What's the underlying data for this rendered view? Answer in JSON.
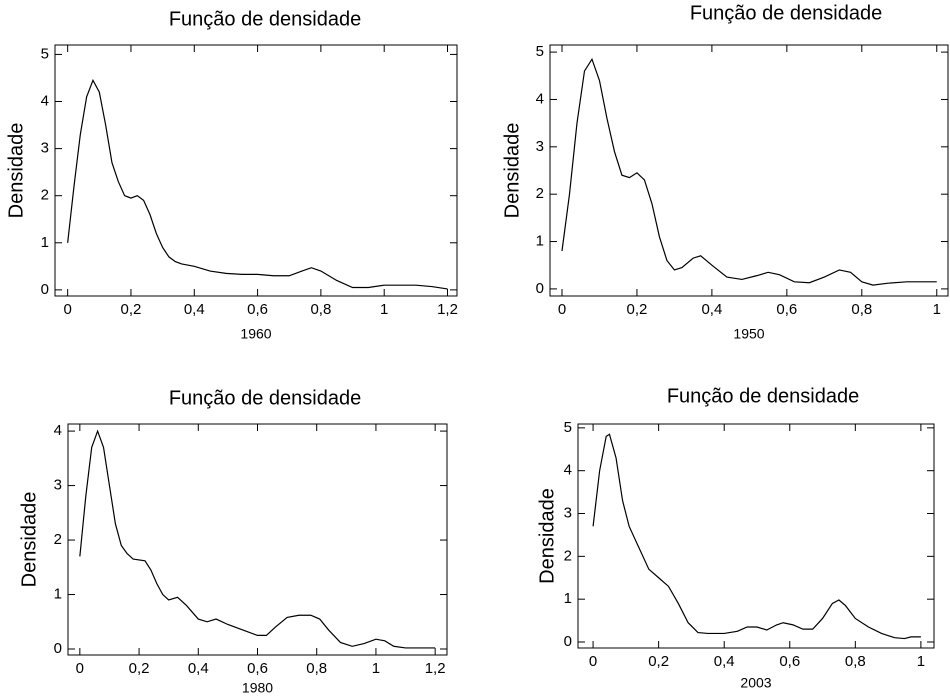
{
  "chart_data": [
    {
      "type": "line",
      "title": "Função de densidade",
      "xlabel": "1960",
      "ylabel": "Densidade",
      "color": "#000000",
      "x": [
        0,
        0.02,
        0.04,
        0.06,
        0.08,
        0.1,
        0.12,
        0.14,
        0.16,
        0.18,
        0.2,
        0.22,
        0.24,
        0.26,
        0.28,
        0.3,
        0.32,
        0.34,
        0.36,
        0.4,
        0.45,
        0.5,
        0.55,
        0.6,
        0.65,
        0.7,
        0.74,
        0.77,
        0.8,
        0.85,
        0.9,
        0.95,
        1.0,
        1.05,
        1.1,
        1.15,
        1.2
      ],
      "values": [
        1.0,
        2.2,
        3.3,
        4.1,
        4.45,
        4.2,
        3.5,
        2.7,
        2.3,
        2.0,
        1.95,
        2.0,
        1.9,
        1.6,
        1.2,
        0.9,
        0.7,
        0.6,
        0.55,
        0.5,
        0.4,
        0.35,
        0.33,
        0.33,
        0.3,
        0.3,
        0.4,
        0.47,
        0.4,
        0.2,
        0.05,
        0.05,
        0.1,
        0.1,
        0.1,
        0.07,
        0.02
      ],
      "xlim": [
        -0.04,
        1.23
      ],
      "ylim": [
        -0.13,
        5.2
      ],
      "xticks": [
        0,
        {
          "value": 0.2,
          "label": "0,2"
        },
        {
          "value": 0.4,
          "label": "0,4"
        },
        {
          "value": 0.6,
          "label": "0,6"
        },
        {
          "value": 0.8,
          "label": "0,8"
        },
        1,
        {
          "value": 1.2,
          "label": "1,2"
        }
      ],
      "yticks": [
        0,
        1,
        2,
        3,
        4,
        5
      ]
    },
    {
      "type": "line",
      "title": "Função de densidade",
      "xlabel": "1950",
      "ylabel": "Densidade",
      "color": "#000000",
      "x": [
        0,
        0.02,
        0.04,
        0.06,
        0.08,
        0.1,
        0.12,
        0.14,
        0.16,
        0.18,
        0.2,
        0.22,
        0.24,
        0.26,
        0.28,
        0.3,
        0.32,
        0.35,
        0.37,
        0.4,
        0.44,
        0.48,
        0.52,
        0.55,
        0.58,
        0.62,
        0.66,
        0.7,
        0.74,
        0.77,
        0.8,
        0.83,
        0.87,
        0.92,
        0.96,
        1.0
      ],
      "values": [
        0.8,
        2.0,
        3.5,
        4.6,
        4.85,
        4.4,
        3.6,
        2.9,
        2.4,
        2.35,
        2.45,
        2.3,
        1.8,
        1.1,
        0.6,
        0.4,
        0.45,
        0.65,
        0.7,
        0.5,
        0.25,
        0.2,
        0.28,
        0.35,
        0.3,
        0.15,
        0.13,
        0.25,
        0.4,
        0.35,
        0.15,
        0.08,
        0.12,
        0.15,
        0.15,
        0.15
      ],
      "xlim": [
        -0.032,
        1.03
      ],
      "ylim": [
        -0.15,
        5.15
      ],
      "xticks": [
        0,
        {
          "value": 0.2,
          "label": "0,2"
        },
        {
          "value": 0.4,
          "label": "0,4"
        },
        {
          "value": 0.6,
          "label": "0,6"
        },
        {
          "value": 0.8,
          "label": "0,8"
        },
        1
      ],
      "yticks": [
        0,
        1,
        2,
        3,
        4,
        5
      ]
    },
    {
      "type": "line",
      "title": "Função de densidade",
      "xlabel": "1980",
      "ylabel": "Densidade",
      "color": "#000000",
      "x": [
        0,
        0.02,
        0.04,
        0.06,
        0.08,
        0.1,
        0.12,
        0.14,
        0.16,
        0.18,
        0.22,
        0.24,
        0.26,
        0.28,
        0.3,
        0.33,
        0.36,
        0.4,
        0.43,
        0.46,
        0.5,
        0.55,
        0.6,
        0.63,
        0.66,
        0.7,
        0.74,
        0.78,
        0.81,
        0.84,
        0.88,
        0.92,
        0.96,
        1.0,
        1.03,
        1.06,
        1.1,
        1.2
      ],
      "values": [
        1.7,
        2.8,
        3.7,
        4.0,
        3.7,
        3.0,
        2.3,
        1.9,
        1.75,
        1.65,
        1.62,
        1.45,
        1.2,
        1.0,
        0.9,
        0.95,
        0.8,
        0.55,
        0.5,
        0.55,
        0.45,
        0.35,
        0.25,
        0.25,
        0.4,
        0.58,
        0.62,
        0.62,
        0.55,
        0.35,
        0.12,
        0.05,
        0.1,
        0.18,
        0.15,
        0.05,
        0.02,
        0.02
      ],
      "xlim": [
        -0.04,
        1.24
      ],
      "ylim": [
        -0.11,
        4.13
      ],
      "xticks": [
        0,
        {
          "value": 0.2,
          "label": "0,2"
        },
        {
          "value": 0.4,
          "label": "0,4"
        },
        {
          "value": 0.6,
          "label": "0,6"
        },
        {
          "value": 0.8,
          "label": "0,8"
        },
        1,
        {
          "value": 1.2,
          "label": "1,2"
        }
      ],
      "yticks": [
        0,
        1,
        2,
        3,
        4
      ]
    },
    {
      "type": "line",
      "title": "Função de densidade",
      "xlabel": "2003",
      "ylabel": "Densidade",
      "color": "#000000",
      "x": [
        0,
        0.02,
        0.04,
        0.05,
        0.07,
        0.09,
        0.11,
        0.14,
        0.17,
        0.2,
        0.23,
        0.26,
        0.29,
        0.32,
        0.35,
        0.4,
        0.44,
        0.47,
        0.5,
        0.53,
        0.56,
        0.58,
        0.61,
        0.64,
        0.67,
        0.7,
        0.73,
        0.75,
        0.77,
        0.8,
        0.84,
        0.88,
        0.92,
        0.95,
        0.97,
        1.0
      ],
      "values": [
        2.7,
        4.0,
        4.8,
        4.85,
        4.3,
        3.3,
        2.7,
        2.2,
        1.7,
        1.5,
        1.3,
        0.9,
        0.45,
        0.22,
        0.2,
        0.2,
        0.25,
        0.35,
        0.35,
        0.28,
        0.4,
        0.45,
        0.4,
        0.3,
        0.3,
        0.55,
        0.9,
        0.98,
        0.85,
        0.55,
        0.35,
        0.2,
        0.1,
        0.08,
        0.12,
        0.12
      ],
      "xlim": [
        -0.046,
        1.04
      ],
      "ylim": [
        -0.14,
        5.09
      ],
      "xticks": [
        0,
        {
          "value": 0.2,
          "label": "0,2"
        },
        {
          "value": 0.4,
          "label": "0,4"
        },
        {
          "value": 0.6,
          "label": "0,6"
        },
        {
          "value": 0.8,
          "label": "0,8"
        },
        1
      ],
      "yticks": [
        0,
        1,
        2,
        3,
        4,
        5
      ]
    }
  ]
}
